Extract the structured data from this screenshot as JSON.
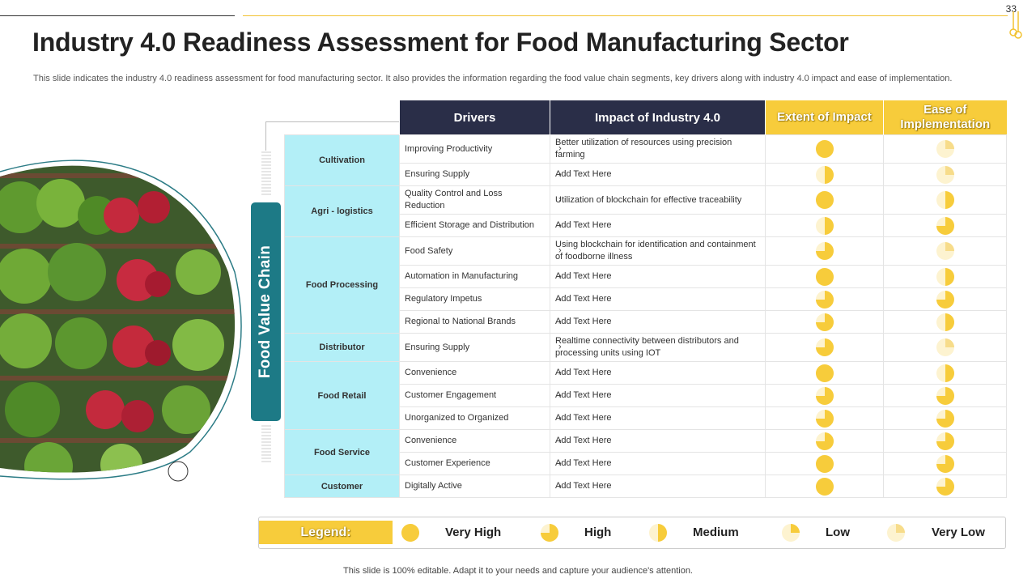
{
  "page_number": "33",
  "title": "Industry 4.0 Readiness Assessment for Food Manufacturing Sector",
  "subtitle": "This slide indicates the industry 4.0 readiness assessment for food manufacturing sector. It also provides the information regarding the food value chain segments, key drivers along with industry 4.0 impact and ease of implementation.",
  "side_label": "Food Value Chain",
  "colors": {
    "accent_gold": "#f7cc3b",
    "header_dark": "#2a2e48",
    "teal": "#1d7a86",
    "segment_bg": "#b3eff7"
  },
  "table": {
    "headers": [
      "Drivers",
      "Impact of Industry 4.0",
      "Extent of Impact",
      "Ease of Implementation"
    ],
    "segments": [
      {
        "name": "Cultivation",
        "rows": [
          {
            "driver": "Improving Productivity",
            "impact": "Better utilization of resources using precision farming",
            "extent": "very-high",
            "ease": "very-low"
          },
          {
            "driver": "Ensuring Supply",
            "impact": "Add Text Here",
            "extent": "medium",
            "ease": "very-low"
          }
        ]
      },
      {
        "name": "Agri - logistics",
        "rows": [
          {
            "driver": "Quality Control and Loss Reduction",
            "impact": "Utilization of blockchain for effective traceability",
            "extent": "very-high",
            "ease": "medium"
          },
          {
            "driver": "Efficient Storage and Distribution",
            "impact": "Add Text Here",
            "extent": "medium",
            "ease": "high"
          }
        ]
      },
      {
        "name": "Food Processing",
        "rows": [
          {
            "driver": "Food Safety",
            "impact": "Using blockchain for identification and containment of foodborne illness",
            "extent": "high",
            "ease": "very-low"
          },
          {
            "driver": "Automation in Manufacturing",
            "impact": "Add Text Here",
            "extent": "very-high",
            "ease": "medium"
          },
          {
            "driver": "Regulatory Impetus",
            "impact": "Add Text Here",
            "extent": "high",
            "ease": "high"
          },
          {
            "driver": "Regional to National Brands",
            "impact": "Add Text Here",
            "extent": "high",
            "ease": "medium"
          }
        ]
      },
      {
        "name": "Distributor",
        "rows": [
          {
            "driver": "Ensuring Supply",
            "impact": "Realtime connectivity between distributors and processing units using IOT",
            "extent": "high",
            "ease": "very-low"
          }
        ]
      },
      {
        "name": "Food Retail",
        "rows": [
          {
            "driver": "Convenience",
            "impact": "Add Text Here",
            "extent": "very-high",
            "ease": "medium"
          },
          {
            "driver": "Customer Engagement",
            "impact": "Add Text Here",
            "extent": "high",
            "ease": "high"
          },
          {
            "driver": "Unorganized to Organized",
            "impact": "Add Text Here",
            "extent": "high",
            "ease": "high"
          }
        ]
      },
      {
        "name": "Food Service",
        "rows": [
          {
            "driver": "Convenience",
            "impact": "Add Text Here",
            "extent": "high",
            "ease": "high"
          },
          {
            "driver": "Customer Experience",
            "impact": "Add Text Here",
            "extent": "very-high",
            "ease": "high"
          }
        ]
      },
      {
        "name": "Customer",
        "rows": [
          {
            "driver": "Digitally Active",
            "impact": "Add Text Here",
            "extent": "very-high",
            "ease": "high"
          }
        ]
      }
    ]
  },
  "legend": {
    "label": "Legend:",
    "items": [
      {
        "level": "very-high",
        "text": "Very High",
        "fill_fraction": 1.0
      },
      {
        "level": "high",
        "text": "High",
        "fill_fraction": 0.75
      },
      {
        "level": "medium",
        "text": "Medium",
        "fill_fraction": 0.5
      },
      {
        "level": "low",
        "text": "Low",
        "fill_fraction": 0.25
      },
      {
        "level": "very-low",
        "text": "Very Low",
        "fill_fraction": 0.0
      }
    ]
  },
  "footer": "This slide is 100% editable. Adapt it to your needs and capture your audience's attention."
}
